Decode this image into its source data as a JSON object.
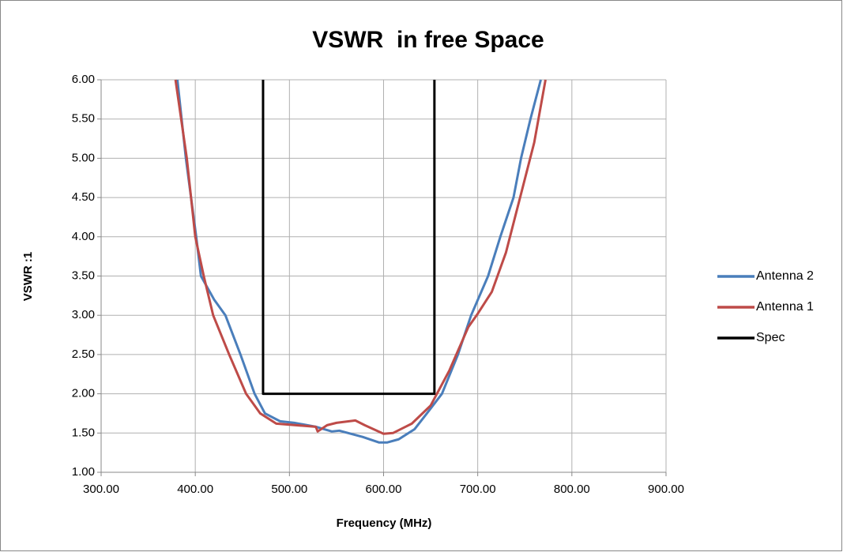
{
  "chart_data": {
    "type": "line",
    "title": "VSWR  in free Space",
    "x_label": "Frequency (MHz)",
    "y_label": "VSWR :1",
    "xlim": [
      300,
      900
    ],
    "ylim": [
      1,
      6
    ],
    "xticks": [
      {
        "value": 300,
        "label": "300.00"
      },
      {
        "value": 400,
        "label": "400.00"
      },
      {
        "value": 500,
        "label": "500.00"
      },
      {
        "value": 600,
        "label": "600.00"
      },
      {
        "value": 700,
        "label": "700.00"
      },
      {
        "value": 800,
        "label": "800.00"
      },
      {
        "value": 900,
        "label": "900.00"
      }
    ],
    "yticks": [
      {
        "value": 1,
        "label": "1.00"
      },
      {
        "value": 1.5,
        "label": "1.50"
      },
      {
        "value": 2,
        "label": "2.00"
      },
      {
        "value": 2.5,
        "label": "2.50"
      },
      {
        "value": 3,
        "label": "3.00"
      },
      {
        "value": 3.5,
        "label": "3.50"
      },
      {
        "value": 4,
        "label": "4.00"
      },
      {
        "value": 4.5,
        "label": "4.50"
      },
      {
        "value": 5,
        "label": "5.00"
      },
      {
        "value": 5.5,
        "label": "5.50"
      },
      {
        "value": 6,
        "label": "6.00"
      }
    ],
    "grid": true,
    "legend": "right",
    "series": [
      {
        "name": "Antenna 2",
        "color": "#4a7ebb",
        "x": [
          381,
          390,
          401,
          406,
          420,
          432,
          448,
          463,
          474,
          490,
          505,
          528,
          545,
          553,
          578,
          595,
          604,
          616,
          633,
          646,
          662,
          679,
          693,
          711,
          724,
          738,
          746,
          756,
          767
        ],
        "values": [
          6.0,
          5.0,
          4.0,
          3.5,
          3.2,
          3.0,
          2.5,
          2.0,
          1.75,
          1.65,
          1.63,
          1.58,
          1.52,
          1.53,
          1.45,
          1.38,
          1.38,
          1.42,
          1.55,
          1.75,
          2.0,
          2.5,
          3.0,
          3.5,
          4.0,
          4.5,
          5.0,
          5.5,
          6.0
        ]
      },
      {
        "name": "Antenna 1",
        "color": "#be4b48",
        "x": [
          379,
          391,
          400,
          409,
          419,
          436,
          454,
          469,
          486,
          528,
          530,
          540,
          550,
          570,
          580,
          600,
          610,
          630,
          650,
          670,
          690,
          700,
          715,
          730,
          745,
          760,
          772
        ],
        "values": [
          6.0,
          5.0,
          4.0,
          3.5,
          3.0,
          2.5,
          2.0,
          1.75,
          1.62,
          1.58,
          1.52,
          1.6,
          1.63,
          1.66,
          1.6,
          1.49,
          1.5,
          1.62,
          1.85,
          2.3,
          2.85,
          3.02,
          3.3,
          3.8,
          4.5,
          5.2,
          6.0
        ]
      },
      {
        "name": "Spec",
        "color": "#000000",
        "x": [
          472,
          472,
          654,
          654
        ],
        "values": [
          6,
          2,
          2,
          6
        ]
      }
    ]
  }
}
